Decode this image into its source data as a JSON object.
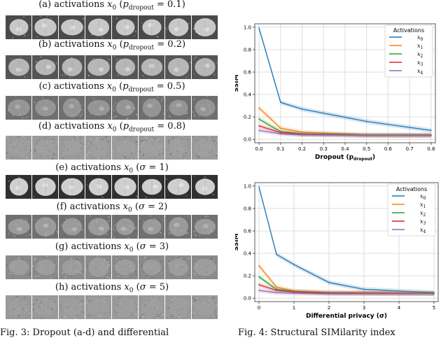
{
  "captions": [
    {
      "prefix": "(a) activations ",
      "param": "p",
      "sub": "dropout",
      "value": "0.1"
    },
    {
      "prefix": "(b) activations ",
      "param": "p",
      "sub": "dropout",
      "value": "0.2"
    },
    {
      "prefix": "(c) activations ",
      "param": "p",
      "sub": "dropout",
      "value": "0.5"
    },
    {
      "prefix": "(d) activations ",
      "param": "p",
      "sub": "dropout",
      "value": "0.8"
    },
    {
      "prefix": "(e) activations ",
      "param": "σ",
      "sub": "",
      "value": "1"
    },
    {
      "prefix": "(f) activations ",
      "param": "σ",
      "sub": "",
      "value": "2"
    },
    {
      "prefix": "(g) activations ",
      "param": "σ",
      "sub": "",
      "value": "3"
    },
    {
      "prefix": "(h) activations ",
      "param": "σ",
      "sub": "",
      "value": "5"
    }
  ],
  "strips": [
    {
      "bg": "#4a4a4a",
      "fg": "#cfcfcf",
      "noise": 0.15,
      "visibility": 1.0
    },
    {
      "bg": "#555555",
      "fg": "#c4c4c4",
      "noise": 0.2,
      "visibility": 0.9
    },
    {
      "bg": "#6e6e6e",
      "fg": "#a8a8a8",
      "noise": 0.45,
      "visibility": 0.55
    },
    {
      "bg": "#9a9a9a",
      "fg": "#a6a6a6",
      "noise": 0.8,
      "visibility": 0.15
    },
    {
      "bg": "#303030",
      "fg": "#d8d8d8",
      "noise": 0.1,
      "visibility": 1.0
    },
    {
      "bg": "#707070",
      "fg": "#b0b0b0",
      "noise": 0.55,
      "visibility": 0.55
    },
    {
      "bg": "#8a8a8a",
      "fg": "#adadad",
      "noise": 0.75,
      "visibility": 0.3
    },
    {
      "bg": "#999999",
      "fg": "#a4a4a4",
      "noise": 0.9,
      "visibility": 0.1
    }
  ],
  "footer": {
    "left_fragment": "Fig. 3: Dropout (a-d) and differential",
    "right_fragment": "Fig. 4: Structural SIMilarity index"
  },
  "chart_data": [
    {
      "type": "line",
      "xlabel": "Dropout (p_dropout)",
      "ylabel": "SSIM",
      "x": [
        0.0,
        0.1,
        0.2,
        0.5,
        0.8
      ],
      "xlim": [
        -0.02,
        0.82
      ],
      "ylim": [
        -0.03,
        1.03
      ],
      "xticks": [
        "0.0",
        "0.1",
        "0.2",
        "0.3",
        "0.4",
        "0.5",
        "0.6",
        "0.7",
        "0.8"
      ],
      "yticks": [
        "0.0",
        "0.2",
        "0.4",
        "0.6",
        "0.8",
        "1.0"
      ],
      "grid": true,
      "legend_title": "Activations",
      "legend_position": "top-right",
      "series": [
        {
          "name": "x0",
          "color": "#1f77b4",
          "values": [
            0.99,
            0.33,
            0.27,
            0.16,
            0.08
          ]
        },
        {
          "name": "x1",
          "color": "#ff7f0e",
          "values": [
            0.28,
            0.1,
            0.065,
            0.04,
            0.035
          ]
        },
        {
          "name": "x2",
          "color": "#2ca02c",
          "values": [
            0.18,
            0.07,
            0.05,
            0.04,
            0.04
          ]
        },
        {
          "name": "x3",
          "color": "#d62728",
          "values": [
            0.12,
            0.06,
            0.045,
            0.035,
            0.035
          ]
        },
        {
          "name": "x4",
          "color": "#9467bd",
          "values": [
            0.08,
            0.05,
            0.04,
            0.035,
            0.035
          ]
        }
      ]
    },
    {
      "type": "line",
      "xlabel": "Differential privacy (σ)",
      "ylabel": "SSIM",
      "x": [
        0,
        0.5,
        1,
        2,
        3,
        5
      ],
      "xlim": [
        -0.12,
        5.12
      ],
      "ylim": [
        -0.03,
        1.03
      ],
      "xticks": [
        "0",
        "1",
        "2",
        "3",
        "4",
        "5"
      ],
      "yticks": [
        "0.0",
        "0.2",
        "0.4",
        "0.6",
        "0.8",
        "1.0"
      ],
      "grid": true,
      "legend_title": "Activations",
      "legend_position": "top-right",
      "series": [
        {
          "name": "x0",
          "color": "#1f77b4",
          "values": [
            0.99,
            0.39,
            0.3,
            0.14,
            0.08,
            0.05
          ]
        },
        {
          "name": "x1",
          "color": "#ff7f0e",
          "values": [
            0.29,
            0.1,
            0.065,
            0.05,
            0.05,
            0.045
          ]
        },
        {
          "name": "x2",
          "color": "#2ca02c",
          "values": [
            0.19,
            0.08,
            0.06,
            0.05,
            0.045,
            0.045
          ]
        },
        {
          "name": "x3",
          "color": "#d62728",
          "values": [
            0.12,
            0.07,
            0.055,
            0.045,
            0.045,
            0.04
          ]
        },
        {
          "name": "x4",
          "color": "#9467bd",
          "values": [
            0.07,
            0.05,
            0.045,
            0.04,
            0.04,
            0.04
          ]
        }
      ]
    }
  ]
}
